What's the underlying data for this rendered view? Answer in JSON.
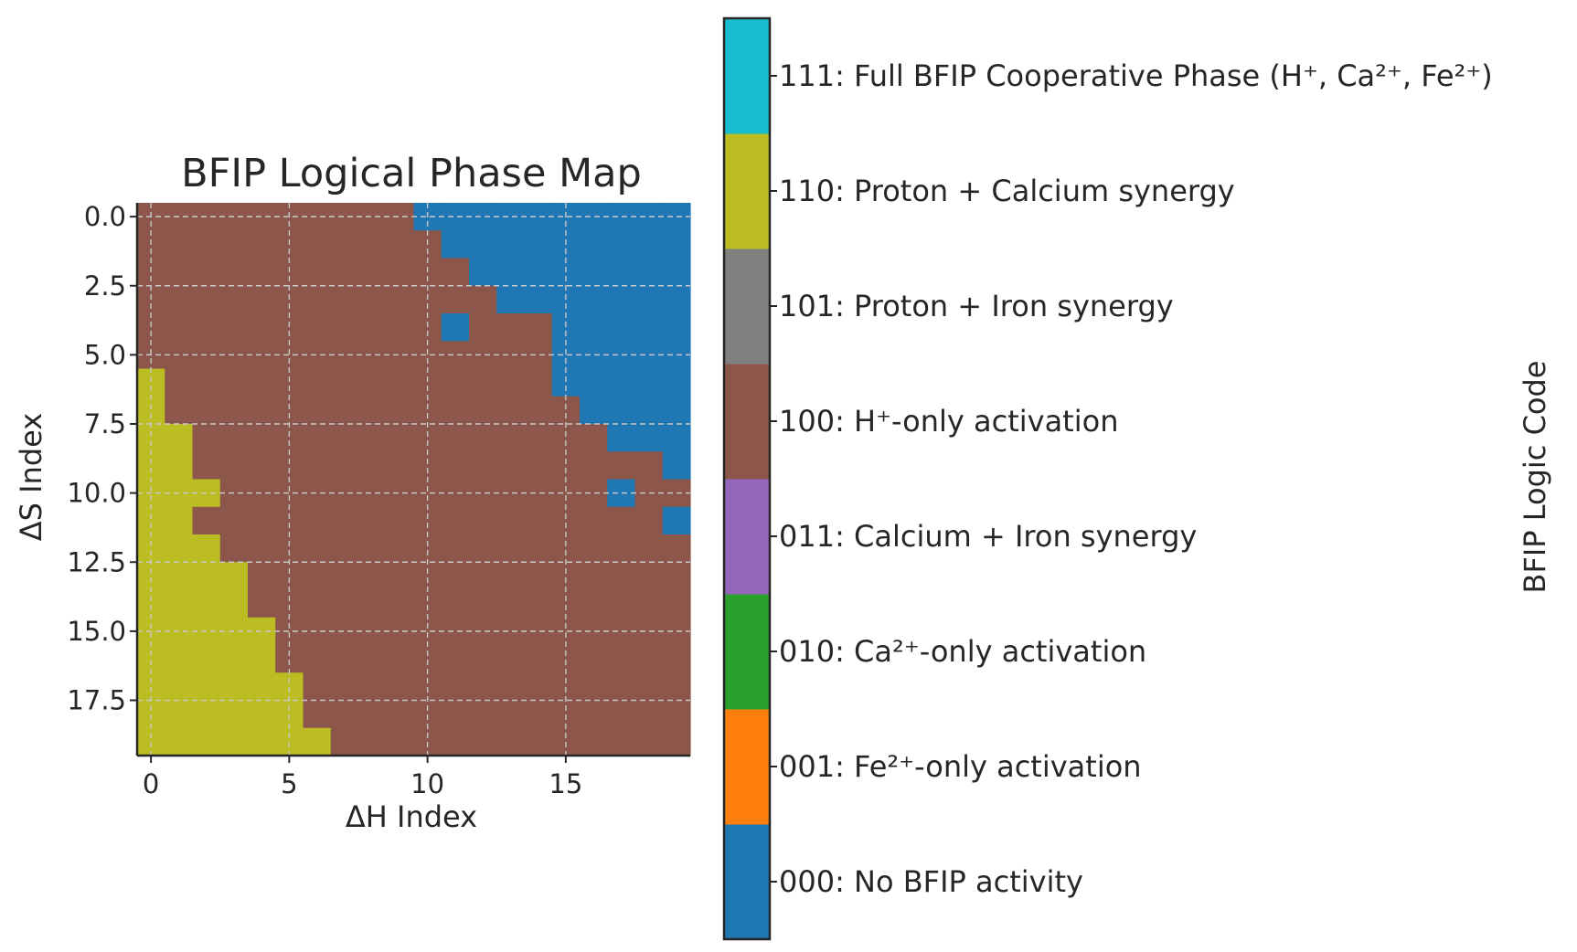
{
  "chart_data": {
    "type": "heatmap",
    "title": "BFIP Logical Phase Map",
    "xlabel": "ΔH Index",
    "ylabel": "ΔS Index",
    "x_ticks": [
      "0",
      "5",
      "10",
      "15"
    ],
    "x_tick_values": [
      0,
      5,
      10,
      15
    ],
    "y_ticks": [
      "0.0",
      "2.5",
      "5.0",
      "7.5",
      "10.0",
      "12.5",
      "15.0",
      "17.5"
    ],
    "y_tick_values": [
      0,
      2.5,
      5,
      7.5,
      10,
      12.5,
      15,
      17.5
    ],
    "xlim": [
      -0.5,
      19.5
    ],
    "ylim": [
      19.5,
      -0.5
    ],
    "grid": true,
    "rows": 20,
    "cols": 20,
    "grid_codes": [
      [
        "100",
        "100",
        "100",
        "100",
        "100",
        "100",
        "100",
        "100",
        "100",
        "100",
        "000",
        "000",
        "000",
        "000",
        "000",
        "000",
        "000",
        "000",
        "000",
        "000"
      ],
      [
        "100",
        "100",
        "100",
        "100",
        "100",
        "100",
        "100",
        "100",
        "100",
        "100",
        "100",
        "000",
        "000",
        "000",
        "000",
        "000",
        "000",
        "000",
        "000",
        "000"
      ],
      [
        "100",
        "100",
        "100",
        "100",
        "100",
        "100",
        "100",
        "100",
        "100",
        "100",
        "100",
        "100",
        "000",
        "000",
        "000",
        "000",
        "000",
        "000",
        "000",
        "000"
      ],
      [
        "100",
        "100",
        "100",
        "100",
        "100",
        "100",
        "100",
        "100",
        "100",
        "100",
        "100",
        "100",
        "100",
        "000",
        "000",
        "000",
        "000",
        "000",
        "000",
        "000"
      ],
      [
        "100",
        "100",
        "100",
        "100",
        "100",
        "100",
        "100",
        "100",
        "100",
        "100",
        "100",
        "000",
        "100",
        "100",
        "100",
        "000",
        "000",
        "000",
        "000",
        "000"
      ],
      [
        "100",
        "100",
        "100",
        "100",
        "100",
        "100",
        "100",
        "100",
        "100",
        "100",
        "100",
        "100",
        "100",
        "100",
        "100",
        "000",
        "000",
        "000",
        "000",
        "000"
      ],
      [
        "110",
        "100",
        "100",
        "100",
        "100",
        "100",
        "100",
        "100",
        "100",
        "100",
        "100",
        "100",
        "100",
        "100",
        "100",
        "000",
        "000",
        "000",
        "000",
        "000"
      ],
      [
        "110",
        "100",
        "100",
        "100",
        "100",
        "100",
        "100",
        "100",
        "100",
        "100",
        "100",
        "100",
        "100",
        "100",
        "100",
        "100",
        "000",
        "000",
        "000",
        "000"
      ],
      [
        "110",
        "110",
        "100",
        "100",
        "100",
        "100",
        "100",
        "100",
        "100",
        "100",
        "100",
        "100",
        "100",
        "100",
        "100",
        "100",
        "100",
        "000",
        "000",
        "000"
      ],
      [
        "110",
        "110",
        "100",
        "100",
        "100",
        "100",
        "100",
        "100",
        "100",
        "100",
        "100",
        "100",
        "100",
        "100",
        "100",
        "100",
        "100",
        "100",
        "100",
        "000"
      ],
      [
        "110",
        "110",
        "110",
        "100",
        "100",
        "100",
        "100",
        "100",
        "100",
        "100",
        "100",
        "100",
        "100",
        "100",
        "100",
        "100",
        "100",
        "000",
        "100",
        "100"
      ],
      [
        "110",
        "110",
        "100",
        "100",
        "100",
        "100",
        "100",
        "100",
        "100",
        "100",
        "100",
        "100",
        "100",
        "100",
        "100",
        "100",
        "100",
        "100",
        "100",
        "000"
      ],
      [
        "110",
        "110",
        "110",
        "100",
        "100",
        "100",
        "100",
        "100",
        "100",
        "100",
        "100",
        "100",
        "100",
        "100",
        "100",
        "100",
        "100",
        "100",
        "100",
        "100"
      ],
      [
        "110",
        "110",
        "110",
        "110",
        "100",
        "100",
        "100",
        "100",
        "100",
        "100",
        "100",
        "100",
        "100",
        "100",
        "100",
        "100",
        "100",
        "100",
        "100",
        "100"
      ],
      [
        "110",
        "110",
        "110",
        "110",
        "100",
        "100",
        "100",
        "100",
        "100",
        "100",
        "100",
        "100",
        "100",
        "100",
        "100",
        "100",
        "100",
        "100",
        "100",
        "100"
      ],
      [
        "110",
        "110",
        "110",
        "110",
        "110",
        "100",
        "100",
        "100",
        "100",
        "100",
        "100",
        "100",
        "100",
        "100",
        "100",
        "100",
        "100",
        "100",
        "100",
        "100"
      ],
      [
        "110",
        "110",
        "110",
        "110",
        "110",
        "100",
        "100",
        "100",
        "100",
        "100",
        "100",
        "100",
        "100",
        "100",
        "100",
        "100",
        "100",
        "100",
        "100",
        "100"
      ],
      [
        "110",
        "110",
        "110",
        "110",
        "110",
        "110",
        "100",
        "100",
        "100",
        "100",
        "100",
        "100",
        "100",
        "100",
        "100",
        "100",
        "100",
        "100",
        "100",
        "100"
      ],
      [
        "110",
        "110",
        "110",
        "110",
        "110",
        "110",
        "100",
        "100",
        "100",
        "100",
        "100",
        "100",
        "100",
        "100",
        "100",
        "100",
        "100",
        "100",
        "100",
        "100"
      ],
      [
        "110",
        "110",
        "110",
        "110",
        "110",
        "110",
        "110",
        "100",
        "100",
        "100",
        "100",
        "100",
        "100",
        "100",
        "100",
        "100",
        "100",
        "100",
        "100",
        "100"
      ]
    ],
    "colorbar": {
      "label": "BFIP Logic Code",
      "categories": [
        {
          "code": "000",
          "label": "000: No BFIP activity",
          "color": "#1f77b4"
        },
        {
          "code": "001",
          "label": "001: Fe²⁺-only activation",
          "color": "#ff7f0e"
        },
        {
          "code": "010",
          "label": "010: Ca²⁺-only activation",
          "color": "#2ca02c"
        },
        {
          "code": "011",
          "label": "011: Calcium + Iron synergy",
          "color": "#9467bd"
        },
        {
          "code": "100",
          "label": "100: H⁺-only activation",
          "color": "#8c564b"
        },
        {
          "code": "101",
          "label": "101: Proton + Iron synergy",
          "color": "#7f7f7f"
        },
        {
          "code": "110",
          "label": "110: Proton + Calcium synergy",
          "color": "#bcbd22"
        },
        {
          "code": "111",
          "label": "111: Full BFIP Cooperative Phase (H⁺, Ca²⁺, Fe²⁺)",
          "color": "#17becf"
        }
      ]
    }
  }
}
